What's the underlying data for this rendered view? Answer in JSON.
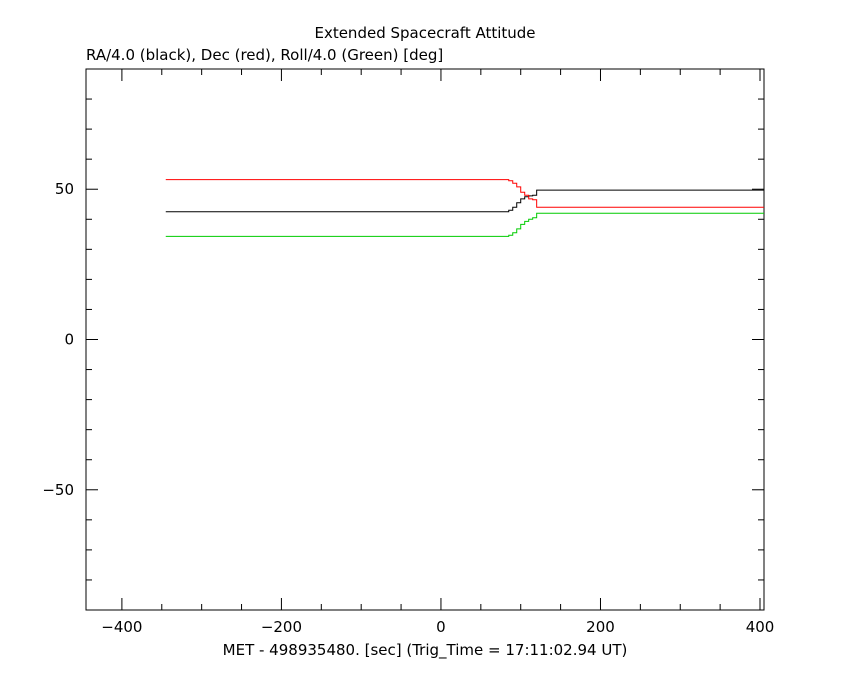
{
  "chart_data": {
    "type": "line",
    "title": "Extended Spacecraft Attitude",
    "subtitle": "RA/4.0 (black), Dec (red), Roll/4.0 (Green) [deg]",
    "xlabel": "MET - 498935480. [sec] (Trig_Time = 17:11:02.94 UT)",
    "ylabel": "",
    "xlim": [
      -445,
      405
    ],
    "ylim": [
      -90,
      90
    ],
    "x_ticks_major": [
      -400,
      -200,
      0,
      200,
      400
    ],
    "x_ticks_minor_step": 50,
    "y_ticks_major": [
      -50,
      0,
      50
    ],
    "y_ticks_minor_step": 10,
    "x_tick_labels": [
      "−400",
      "−200",
      "0",
      "200",
      "400"
    ],
    "y_tick_labels": [
      "−50",
      "0",
      "50"
    ],
    "grid": false,
    "series": [
      {
        "color": "#000000",
        "x": [
          -345,
          80,
          85,
          90,
          95,
          100,
          105,
          110,
          115,
          120,
          405
        ],
        "y": [
          42.5,
          42.5,
          43,
          44,
          45.5,
          46.8,
          47.5,
          47.8,
          48,
          49.7,
          49.7
        ]
      },
      {
        "color": "#ff0000",
        "x": [
          -345,
          80,
          85,
          90,
          95,
          100,
          105,
          110,
          115,
          120,
          405
        ],
        "y": [
          53.2,
          53.2,
          52.8,
          52,
          50.8,
          49,
          48,
          46.8,
          46.5,
          44,
          44
        ]
      },
      {
        "color": "#00cc00",
        "x": [
          -345,
          80,
          85,
          90,
          95,
          100,
          105,
          110,
          115,
          120,
          405
        ],
        "y": [
          34.3,
          34.3,
          34.7,
          35.5,
          36.8,
          38.3,
          39.3,
          40,
          40.5,
          42,
          42
        ]
      }
    ]
  }
}
